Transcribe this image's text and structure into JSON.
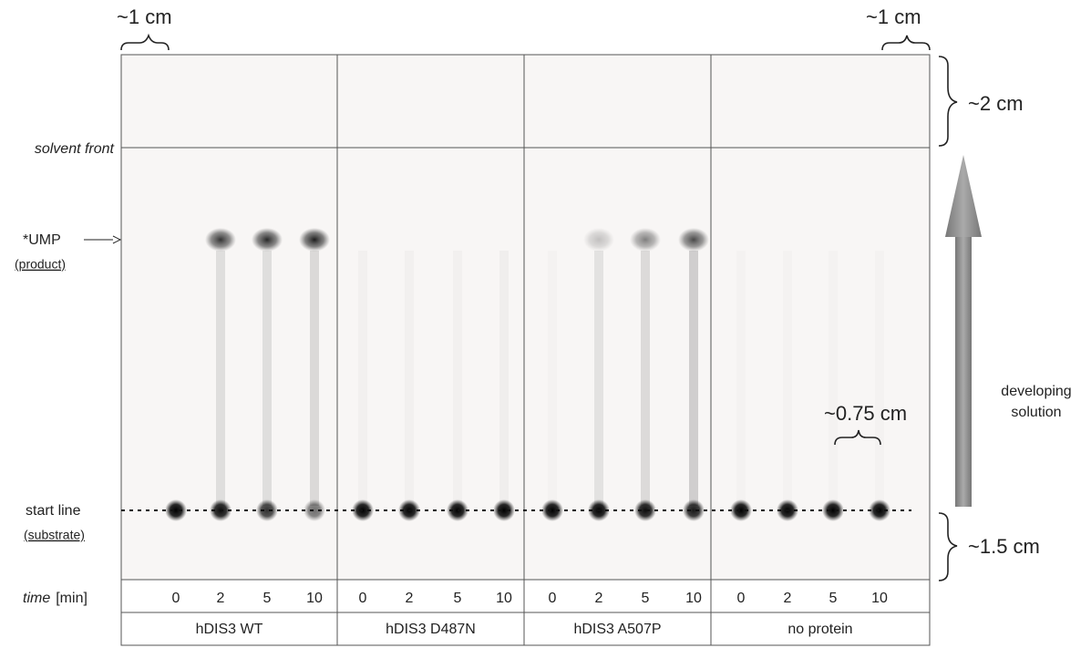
{
  "annotations": {
    "top_left": "~1 cm",
    "top_right": "~1 cm",
    "front_margin": "~2 cm",
    "bottom_margin": "~1.5 cm",
    "lane_spacing": "~0.75 cm"
  },
  "plate_labels": {
    "solvent_front": "solvent front",
    "product": "*UMP",
    "product_note": "(product)",
    "start_line": "start line",
    "start_note": "(substrate)"
  },
  "direction": "developing solution",
  "time_axis": {
    "label": "time",
    "unit": "[min]"
  },
  "groups": [
    {
      "label": "hDIS3 WT",
      "times": [
        0,
        2,
        5,
        10
      ]
    },
    {
      "label": "hDIS3 D487N",
      "times": [
        0,
        2,
        5,
        10
      ]
    },
    {
      "label": "hDIS3 A507P",
      "times": [
        0,
        2,
        5,
        10
      ]
    },
    {
      "label": "no protein",
      "times": [
        0,
        2,
        5,
        10
      ]
    }
  ]
}
